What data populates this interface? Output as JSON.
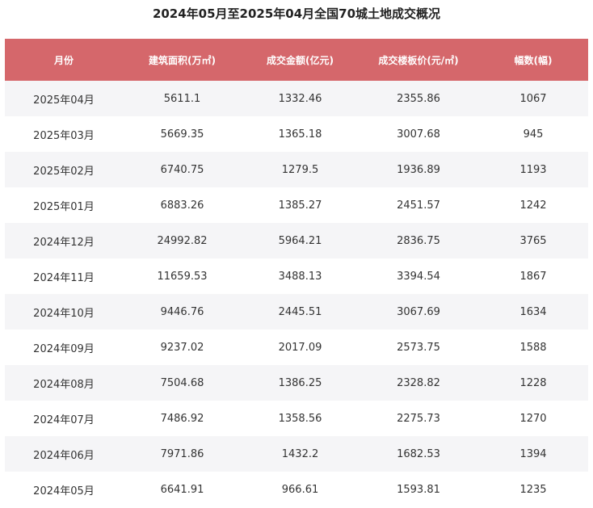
{
  "title": "2024年05月至2025年04月全国70城土地成交概况",
  "columns": [
    "月份",
    "建筑面积(万㎡)",
    "成交金额(亿元)",
    "成交楼板价(元/㎡)",
    "幅数(幅)"
  ],
  "rows": [
    [
      "2025年04月",
      "5611.1",
      "1332.46",
      "2355.86",
      "1067"
    ],
    [
      "2025年03月",
      "5669.35",
      "1365.18",
      "3007.68",
      "945"
    ],
    [
      "2025年02月",
      "6740.75",
      "1279.5",
      "1936.89",
      "1193"
    ],
    [
      "2025年01月",
      "6883.26",
      "1385.27",
      "2451.57",
      "1242"
    ],
    [
      "2024年12月",
      "24992.82",
      "5964.21",
      "2836.75",
      "3765"
    ],
    [
      "2024年11月",
      "11659.53",
      "3488.13",
      "3394.54",
      "1867"
    ],
    [
      "2024年10月",
      "9446.76",
      "2445.51",
      "3067.69",
      "1634"
    ],
    [
      "2024年09月",
      "9237.02",
      "2017.09",
      "2573.75",
      "1588"
    ],
    [
      "2024年08月",
      "7504.68",
      "1386.25",
      "2328.82",
      "1228"
    ],
    [
      "2024年07月",
      "7486.92",
      "1358.56",
      "2275.73",
      "1270"
    ],
    [
      "2024年06月",
      "7971.86",
      "1432.2",
      "1682.53",
      "1394"
    ],
    [
      "2024年05月",
      "6641.91",
      "966.61",
      "1593.81",
      "1235"
    ]
  ],
  "colors": {
    "header_bg": "#d5676b",
    "header_text": "#ffffff",
    "row_stripe": "#f5f5f7"
  }
}
